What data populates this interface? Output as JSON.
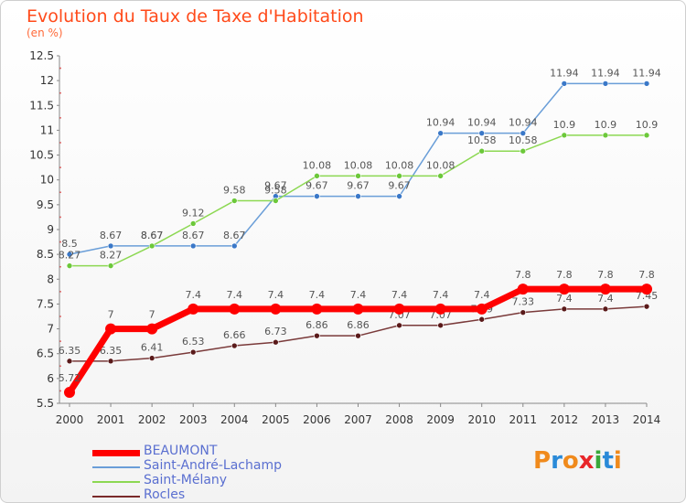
{
  "title": "Evolution du Taux de Taxe d'Habitation",
  "unit": "(en %)",
  "logo": {
    "text": "Proxiti",
    "colors": [
      "#f08a1c",
      "#2a8ad8",
      "#f08a1c",
      "#e8262a",
      "#3aa83a",
      "#2a8ad8",
      "#f08a1c"
    ]
  },
  "chart_data": {
    "type": "line",
    "x": [
      "2000",
      "2001",
      "2002",
      "2003",
      "2004",
      "2005",
      "2006",
      "2007",
      "2008",
      "2009",
      "2010",
      "2011",
      "2012",
      "2013",
      "2014"
    ],
    "ylim": [
      5.5,
      12.5
    ],
    "yticks": [
      "5.5",
      "6",
      "6.5",
      "7",
      "7.5",
      "8",
      "8.5",
      "9",
      "9.5",
      "10",
      "10.5",
      "11",
      "11.5",
      "12",
      "12.5"
    ],
    "grid": false,
    "legend_position": "bottom-left",
    "series": [
      {
        "name": "Saint-André-Lachamp",
        "color": "#6a9ed8",
        "values": [
          8.5,
          8.67,
          8.67,
          8.67,
          8.67,
          9.67,
          9.67,
          9.67,
          9.67,
          10.94,
          10.94,
          10.94,
          11.94,
          11.94,
          11.94
        ]
      },
      {
        "name": "Saint-Mélany",
        "color": "#8cd852",
        "values": [
          8.27,
          8.27,
          8.67,
          9.12,
          9.58,
          9.58,
          10.08,
          10.08,
          10.08,
          10.08,
          10.58,
          10.58,
          10.9,
          10.9,
          10.9
        ]
      },
      {
        "name": "Rocles",
        "color": "#7a2a2a",
        "values": [
          6.35,
          6.35,
          6.41,
          6.53,
          6.66,
          6.73,
          6.86,
          6.86,
          7.07,
          7.07,
          7.19,
          7.33,
          7.4,
          7.4,
          7.45
        ]
      },
      {
        "name": "BEAUMONT",
        "color": "#ff0000",
        "values": [
          5.72,
          7,
          7,
          7.4,
          7.4,
          7.4,
          7.4,
          7.4,
          7.4,
          7.4,
          7.4,
          7.8,
          7.8,
          7.8,
          7.8
        ]
      }
    ],
    "value_labels": {
      "Saint-André-Lachamp": [
        "8.5",
        "8.67",
        "8.67",
        "8.67",
        "8.67",
        "9.67",
        "9.67",
        "9.67",
        "9.67",
        "10.94",
        "10.94",
        "10.94",
        "11.94",
        "11.94",
        "11.94"
      ],
      "Saint-Mélany": [
        "8.27",
        "8.27",
        "8.67",
        "9.12",
        "9.58",
        "9.58",
        "10.08",
        "10.08",
        "10.08",
        "10.08",
        "10.58",
        "10.58",
        "10.9",
        "10.9",
        "10.9"
      ],
      "Rocles": [
        "6.35",
        "6.35",
        "6.41",
        "6.53",
        "6.66",
        "6.73",
        "6.86",
        "6.86",
        "7.07",
        "7.07",
        "7.19",
        "7.33",
        "7.4",
        "7.4",
        "7.45"
      ],
      "BEAUMONT": [
        "5.72",
        "7",
        "7",
        "7.4",
        "7.4",
        "7.4",
        "7.4",
        "7.4",
        "7.4",
        "7.4",
        "7.4",
        "7.8",
        "7.8",
        "7.8",
        "7.8"
      ]
    },
    "legend_order": [
      "BEAUMONT",
      "Saint-André-Lachamp",
      "Saint-Mélany",
      "Rocles"
    ]
  }
}
